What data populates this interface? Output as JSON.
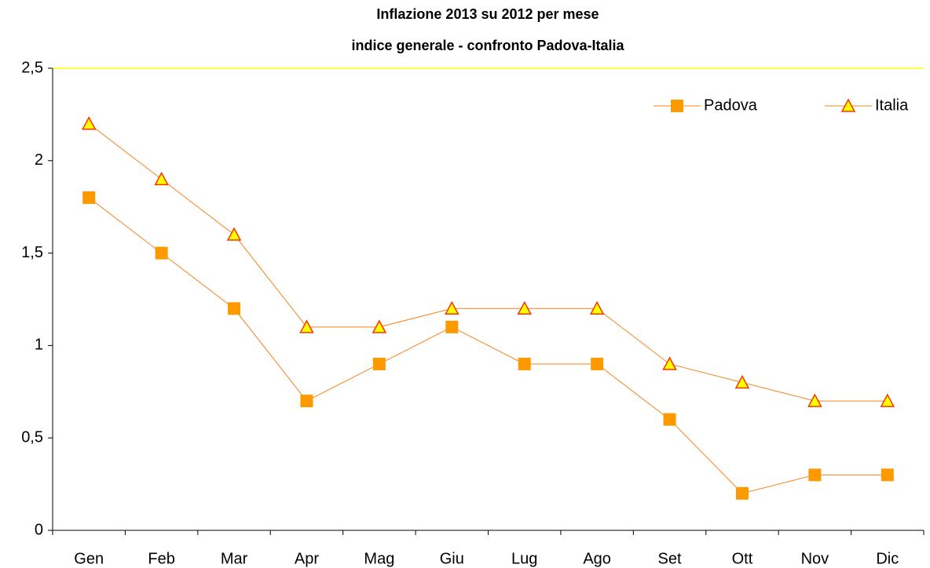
{
  "chart_data": {
    "type": "line",
    "title": "Inflazione 2013 su 2012 per mese",
    "subtitle": "indice generale - confronto Padova-Italia",
    "categories": [
      "Gen",
      "Feb",
      "Mar",
      "Apr",
      "Mag",
      "Giu",
      "Lug",
      "Ago",
      "Set",
      "Ott",
      "Nov",
      "Dic"
    ],
    "series": [
      {
        "name": "Padova",
        "color": "#FF9900",
        "marker": "square",
        "values": [
          1.8,
          1.5,
          1.2,
          0.7,
          0.9,
          1.1,
          0.9,
          0.9,
          0.6,
          0.2,
          0.3,
          0.3
        ]
      },
      {
        "name": "Italia",
        "color": "#FFFF00",
        "marker": "triangle",
        "values": [
          2.2,
          1.9,
          1.6,
          1.1,
          1.1,
          1.2,
          1.2,
          1.2,
          0.9,
          0.8,
          0.7,
          0.7
        ]
      }
    ],
    "ylim": [
      0,
      2.5
    ],
    "yticks": [
      0,
      {
        "value": 0.5,
        "label": "0,5"
      },
      1,
      {
        "value": 1.5,
        "label": "1,5"
      },
      2,
      {
        "value": 2.5,
        "label": "2,5"
      }
    ],
    "grid": false,
    "legend": "top-right"
  }
}
